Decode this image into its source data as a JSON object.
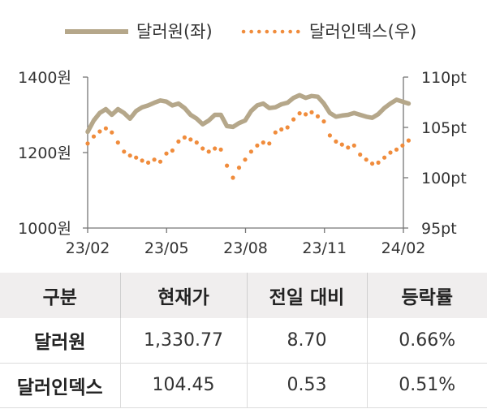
{
  "chart_data": {
    "type": "line",
    "legend": {
      "placement": "top-center"
    },
    "x_ticks": [
      "23/02",
      "23/05",
      "23/08",
      "23/11",
      "24/02"
    ],
    "left_axis": {
      "ylim": [
        1000,
        1400
      ],
      "ticks": [
        "1400원",
        "1200원",
        "1000원"
      ],
      "tick_values": [
        1400,
        1200,
        1000
      ]
    },
    "right_axis": {
      "ylim": [
        95,
        110
      ],
      "ticks": [
        "110pt",
        "105pt",
        "100pt",
        "95pt"
      ],
      "tick_values": [
        110,
        105,
        100,
        95
      ]
    },
    "grid": false,
    "series": [
      {
        "name": "달러원(좌)",
        "axis": "left",
        "style": "solid",
        "color": "#b5a78a",
        "x": [
          "2023-02-01",
          "2023-02-08",
          "2023-02-15",
          "2023-02-22",
          "2023-03-01",
          "2023-03-08",
          "2023-03-15",
          "2023-03-22",
          "2023-03-29",
          "2023-04-05",
          "2023-04-12",
          "2023-04-19",
          "2023-04-26",
          "2023-05-03",
          "2023-05-10",
          "2023-05-17",
          "2023-05-24",
          "2023-05-31",
          "2023-06-07",
          "2023-06-14",
          "2023-06-21",
          "2023-06-28",
          "2023-07-05",
          "2023-07-12",
          "2023-07-19",
          "2023-07-26",
          "2023-08-02",
          "2023-08-09",
          "2023-08-16",
          "2023-08-23",
          "2023-08-30",
          "2023-09-06",
          "2023-09-13",
          "2023-09-20",
          "2023-09-27",
          "2023-10-04",
          "2023-10-11",
          "2023-10-18",
          "2023-10-25",
          "2023-11-01",
          "2023-11-08",
          "2023-11-15",
          "2023-11-22",
          "2023-11-29",
          "2023-12-06",
          "2023-12-13",
          "2023-12-20",
          "2023-12-27",
          "2024-01-03",
          "2024-01-10",
          "2024-01-17",
          "2024-01-24",
          "2024-01-31",
          "2024-02-07"
        ],
        "values": [
          1255,
          1285,
          1305,
          1315,
          1300,
          1315,
          1305,
          1290,
          1310,
          1320,
          1325,
          1332,
          1338,
          1335,
          1325,
          1330,
          1318,
          1300,
          1290,
          1275,
          1285,
          1300,
          1300,
          1270,
          1268,
          1278,
          1285,
          1310,
          1325,
          1330,
          1318,
          1320,
          1328,
          1332,
          1345,
          1352,
          1345,
          1350,
          1348,
          1330,
          1305,
          1295,
          1298,
          1300,
          1305,
          1300,
          1295,
          1292,
          1302,
          1318,
          1330,
          1340,
          1335,
          1330
        ]
      },
      {
        "name": "달러인덱스(우)",
        "axis": "right",
        "style": "dotted",
        "color": "#f08c3c",
        "x": [
          "2023-02-01",
          "2023-02-08",
          "2023-02-15",
          "2023-02-22",
          "2023-03-01",
          "2023-03-08",
          "2023-03-15",
          "2023-03-22",
          "2023-03-29",
          "2023-04-05",
          "2023-04-12",
          "2023-04-19",
          "2023-04-26",
          "2023-05-03",
          "2023-05-10",
          "2023-05-17",
          "2023-05-24",
          "2023-05-31",
          "2023-06-07",
          "2023-06-14",
          "2023-06-21",
          "2023-06-28",
          "2023-07-05",
          "2023-07-12",
          "2023-07-19",
          "2023-07-26",
          "2023-08-02",
          "2023-08-09",
          "2023-08-16",
          "2023-08-23",
          "2023-08-30",
          "2023-09-06",
          "2023-09-13",
          "2023-09-20",
          "2023-09-27",
          "2023-10-04",
          "2023-10-11",
          "2023-10-18",
          "2023-10-25",
          "2023-11-01",
          "2023-11-08",
          "2023-11-15",
          "2023-11-22",
          "2023-11-29",
          "2023-12-06",
          "2023-12-13",
          "2023-12-20",
          "2023-12-27",
          "2024-01-03",
          "2024-01-10",
          "2024-01-17",
          "2024-01-24",
          "2024-01-31",
          "2024-02-07"
        ],
        "values": [
          103.4,
          104.1,
          104.6,
          104.9,
          104.5,
          103.5,
          102.6,
          102.2,
          102.0,
          101.7,
          101.5,
          101.8,
          101.6,
          102.4,
          102.7,
          103.6,
          104.0,
          103.8,
          103.5,
          102.9,
          102.6,
          102.9,
          102.8,
          101.2,
          100.0,
          101.0,
          101.8,
          102.6,
          103.2,
          103.5,
          103.4,
          104.5,
          104.8,
          105.0,
          105.8,
          106.4,
          106.3,
          106.5,
          106.1,
          105.6,
          104.2,
          103.6,
          103.3,
          103.0,
          103.2,
          102.3,
          101.8,
          101.4,
          101.5,
          102.0,
          102.5,
          102.8,
          103.2,
          103.7
        ]
      }
    ]
  },
  "table": {
    "headers": [
      "구분",
      "현재가",
      "전일 대비",
      "등락률"
    ],
    "rows": [
      [
        "달러원",
        "1,330.77",
        "8.70",
        "0.66%"
      ],
      [
        "달러인덱스",
        "104.45",
        "0.53",
        "0.51%"
      ]
    ]
  }
}
